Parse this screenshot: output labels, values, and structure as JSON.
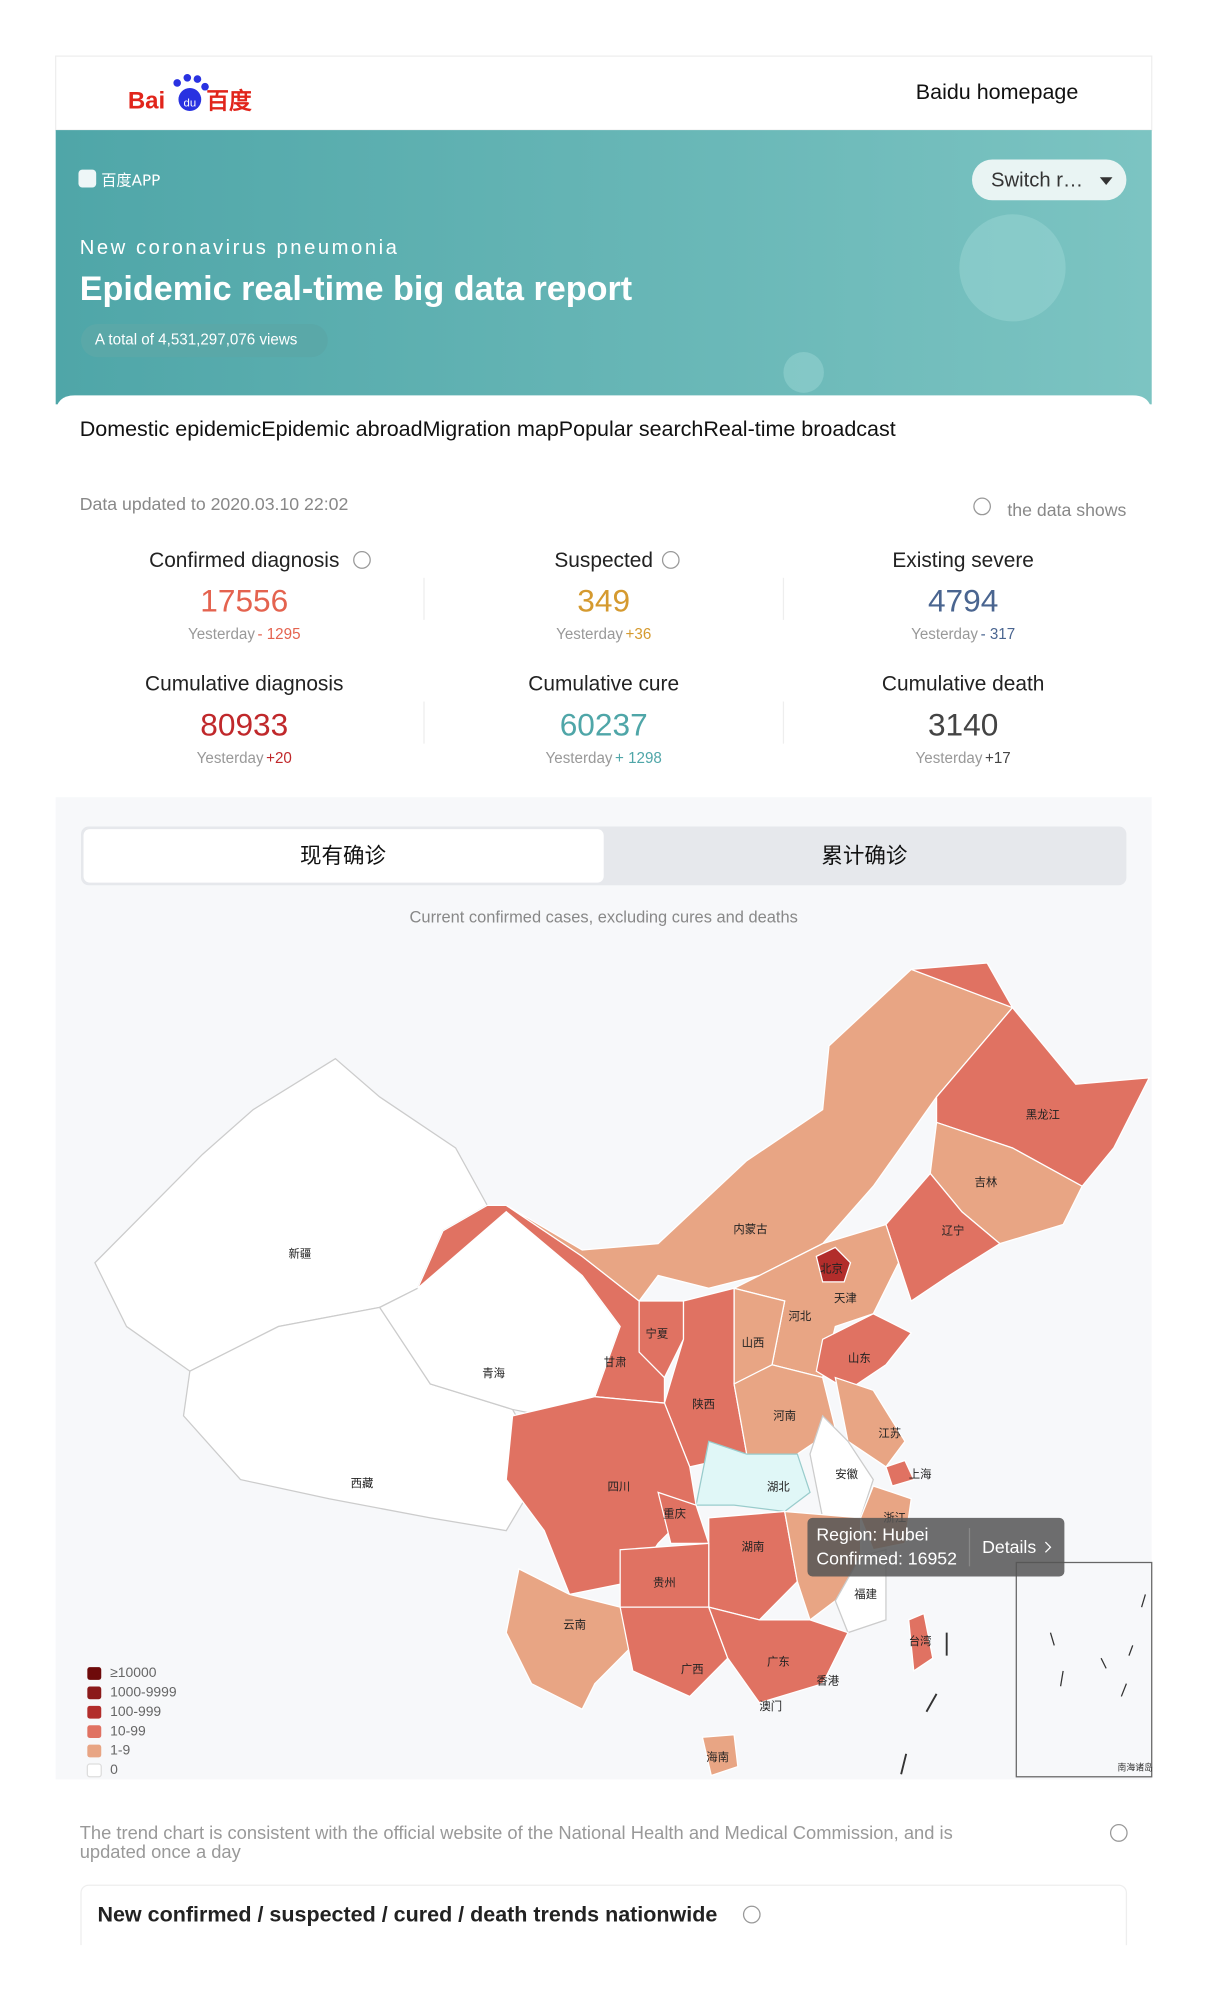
{
  "header": {
    "logo": "Bai",
    "logo_paw": "du",
    "logo_cn": "百度",
    "link": "Baidu homepage"
  },
  "banner": {
    "app": "百度APP",
    "switch": "Switch r…",
    "subtitle": "New coronavirus pneumonia",
    "title": "Epidemic real-time big data report",
    "views": "A total of 4,531,297,076 views"
  },
  "tabs": [
    "Domestic epidemic",
    "Epidemic abroad",
    "Migration map",
    "Popular search",
    "Real-time broadcast"
  ],
  "updated": "Data updated to 2020.03.10 22:02",
  "data_note": "the data shows",
  "stats": [
    {
      "label": "Confirmed diagnosis",
      "value": 17556,
      "yesterday": "Yesterday",
      "change": "- 1295"
    },
    {
      "label": "Suspected",
      "value": 349,
      "yesterday": "Yesterday",
      "change": "+36"
    },
    {
      "label": "Existing severe",
      "value": 4794,
      "yesterday": "Yesterday",
      "change": "- 317"
    },
    {
      "label": "Cumulative diagnosis",
      "value": 80933,
      "yesterday": "Yesterday",
      "change": "+20"
    },
    {
      "label": "Cumulative cure",
      "value": 60237,
      "yesterday": "Yesterday",
      "change": "+ 1298"
    },
    {
      "label": "Cumulative death",
      "value": 3140,
      "yesterday": "Yesterday",
      "change": "+17"
    }
  ],
  "map_tabs": [
    "现有确诊",
    "累计确诊"
  ],
  "map_note": "Current confirmed cases, excluding cures and deaths",
  "map": {
    "regions": [
      "新疆",
      "西藏",
      "青海",
      "甘肃",
      "宁夏",
      "内蒙古",
      "黑龙江",
      "吉林",
      "辽宁",
      "北京",
      "天津",
      "河北",
      "山西",
      "山东",
      "陕西",
      "河南",
      "江苏",
      "安徽",
      "上海",
      "湖北",
      "四川",
      "重庆",
      "浙江",
      "湖南",
      "贵州",
      "福建",
      "云南",
      "广西",
      "广东",
      "台湾",
      "香港",
      "澳门",
      "海南"
    ],
    "tooltip": {
      "region": "Region: Hubei",
      "confirmed": "Confirmed: 16952",
      "details": "Details"
    },
    "legend": [
      "≥10000",
      "1000-9999",
      "100-999",
      "10-99",
      "1-9",
      "0"
    ],
    "inset": "南海诸岛"
  },
  "footer": {
    "note": [
      "The trend chart is consistent with the official website of the National Health and Medical Commission, and is",
      "updated once a day"
    ],
    "trend_title": "New confirmed / suspected / cured / death trends nationwide"
  }
}
